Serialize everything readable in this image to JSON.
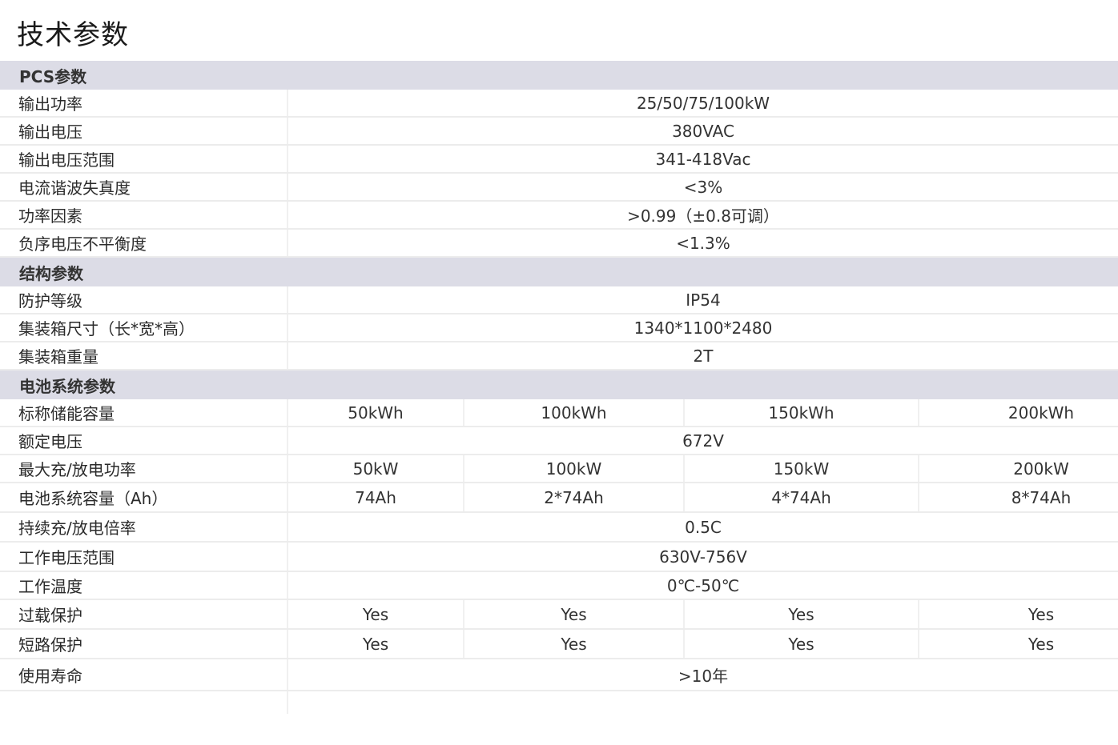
{
  "title": "技术参数",
  "sections": [
    {
      "header": "PCS参数",
      "rows": [
        {
          "label": "输出功率",
          "value": "25/50/75/100kW"
        },
        {
          "label": "输出电压",
          "value": "380VAC"
        },
        {
          "label": "输出电压范围",
          "value": "341-418Vac"
        },
        {
          "label": "电流谐波失真度",
          "value": "<3%"
        },
        {
          "label": "功率因素",
          "value": ">0.99（±0.8可调）"
        },
        {
          "label": "负序电压不平衡度",
          "value": "<1.3%"
        }
      ]
    },
    {
      "header": "结构参数",
      "rows": [
        {
          "label": "防护等级",
          "value": "IP54"
        },
        {
          "label": "集装箱尺寸（长*宽*高）",
          "value": "1340*1100*2480"
        },
        {
          "label": "集装箱重量",
          "value": "2T"
        }
      ]
    },
    {
      "header": "电池系统参数",
      "rows": [
        {
          "label": "标称储能容量",
          "cells": [
            "50kWh",
            "100kWh",
            "150kWh",
            "200kWh"
          ]
        },
        {
          "label": "额定电压",
          "value": "672V"
        },
        {
          "label": "最大充/放电功率",
          "cells": [
            "50kW",
            "100kW",
            "150kW",
            "200kW"
          ]
        },
        {
          "label": "电池系统容量（Ah）",
          "cells": [
            "74Ah",
            "2*74Ah",
            "4*74Ah",
            "8*74Ah"
          ]
        },
        {
          "label": "持续充/放电倍率",
          "value": "0.5C"
        },
        {
          "label": "工作电压范围",
          "value": "630V-756V"
        },
        {
          "label": "工作温度",
          "value": "0℃-50℃"
        },
        {
          "label": "过载保护",
          "cells": [
            "Yes",
            "Yes",
            "Yes",
            "Yes"
          ]
        },
        {
          "label": "短路保护",
          "cells": [
            "Yes",
            "Yes",
            "Yes",
            "Yes"
          ]
        },
        {
          "label": "使用寿命",
          "value": ">10年"
        }
      ]
    }
  ]
}
